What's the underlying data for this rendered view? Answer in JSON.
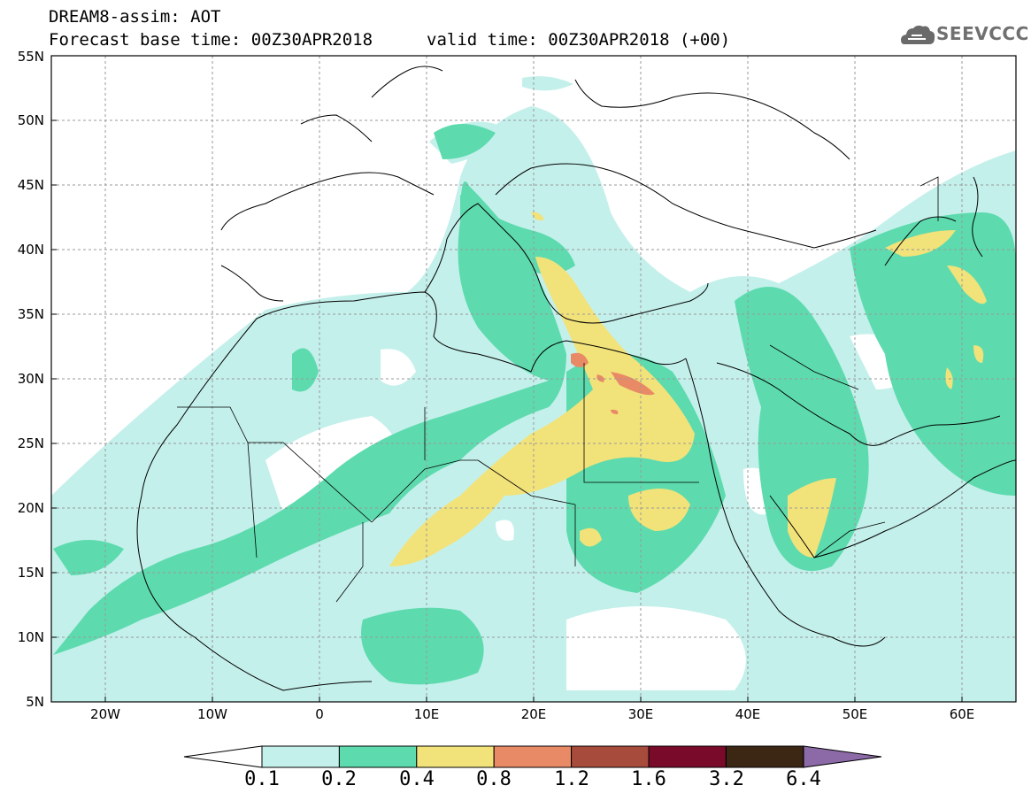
{
  "header": {
    "title": "DREAM8-assim: AOT",
    "base_time": "Forecast base time: 00Z30APR2018",
    "valid_time": "valid time: 00Z30APR2018 (+00)",
    "logo_text": "SEEVCCC"
  },
  "map": {
    "lat_labels": [
      "55N",
      "50N",
      "45N",
      "40N",
      "35N",
      "30N",
      "25N",
      "20N",
      "15N",
      "10N",
      "5N"
    ],
    "lon_labels": [
      "20W",
      "10W",
      "0",
      "10E",
      "20E",
      "30E",
      "40E",
      "50E",
      "60E"
    ],
    "lon_range": [
      -25,
      65
    ],
    "lat_range": [
      5,
      55
    ]
  },
  "colorbar": {
    "levels": [
      "0.1",
      "0.2",
      "0.4",
      "0.8",
      "1.2",
      "1.6",
      "3.2",
      "6.4"
    ],
    "colors": [
      "#c4f0eb",
      "#5ddbae",
      "#f2e27a",
      "#e98a66",
      "#a74b3c",
      "#7a0a2a",
      "#3c2614",
      "#8c6aa8"
    ],
    "under_color": "#ffffff"
  }
}
